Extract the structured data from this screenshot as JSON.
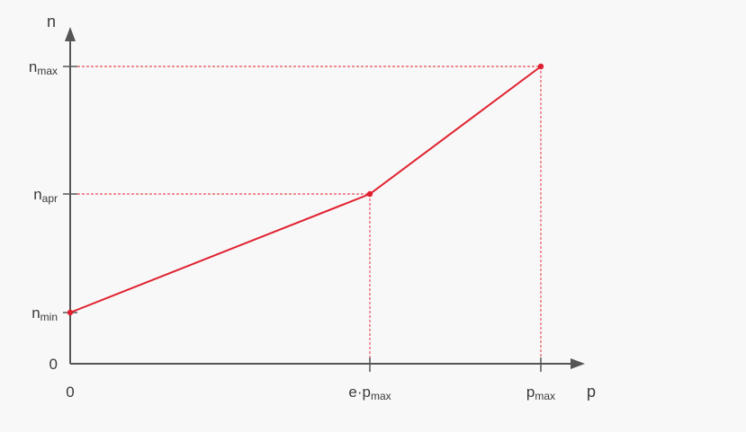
{
  "chart_data": {
    "type": "line",
    "xlabel": "p",
    "ylabel": "n",
    "x_ticks": [
      {
        "key": "zero",
        "main": "0",
        "sub": ""
      },
      {
        "key": "e_pmax",
        "main": "e·p",
        "sub": "max"
      },
      {
        "key": "pmax",
        "main": "p",
        "sub": "max"
      }
    ],
    "y_ticks": [
      {
        "key": "zero",
        "main": "0",
        "sub": ""
      },
      {
        "key": "nmin",
        "main": "n",
        "sub": "min"
      },
      {
        "key": "napr",
        "main": "n",
        "sub": "apr"
      },
      {
        "key": "nmax",
        "main": "n",
        "sub": "max"
      }
    ],
    "series": [
      {
        "points": [
          {
            "x": "0",
            "y": "n_min"
          },
          {
            "x": "e·p_max",
            "y": "n_apr"
          },
          {
            "x": "p_max",
            "y": "n_max"
          }
        ]
      }
    ],
    "guide_lines": "dashed",
    "colors": {
      "line": "#e0202e",
      "axis": "#555555",
      "guide": "#e0202e"
    }
  }
}
